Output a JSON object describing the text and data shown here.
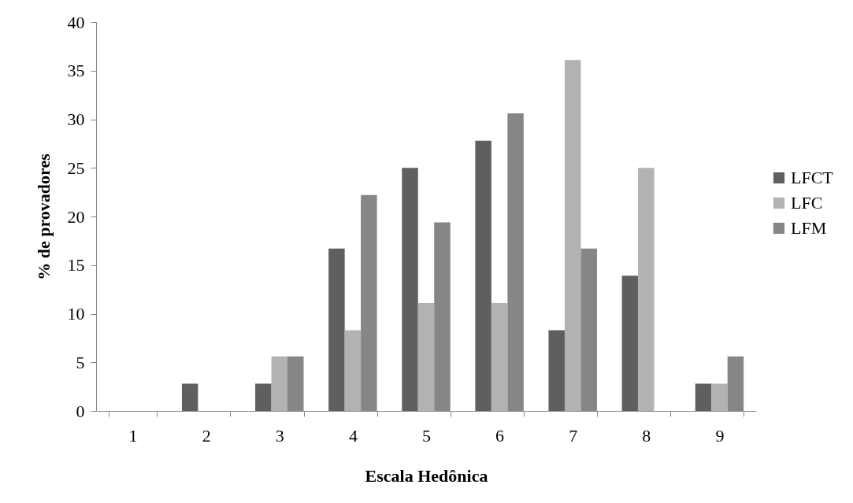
{
  "chart_data": {
    "type": "bar",
    "xlabel": "Escala Hedônica",
    "ylabel": "% de provadores",
    "categories": [
      "1",
      "2",
      "3",
      "4",
      "5",
      "6",
      "7",
      "8",
      "9"
    ],
    "series": [
      {
        "name": "LFCT",
        "color": "#5f5f5f",
        "values": [
          0,
          2.8,
          2.8,
          16.7,
          25,
          27.8,
          8.3,
          13.9,
          2.8
        ]
      },
      {
        "name": "LFC",
        "color": "#b2b2b2",
        "values": [
          0,
          0,
          5.6,
          8.3,
          11.1,
          11.1,
          36.1,
          25,
          2.8
        ]
      },
      {
        "name": "LFM",
        "color": "#868686",
        "values": [
          0,
          0,
          5.6,
          22.2,
          19.4,
          30.6,
          16.7,
          0,
          5.6
        ]
      }
    ],
    "ylim": [
      0,
      40
    ],
    "yticks": [
      0,
      5,
      10,
      15,
      20,
      25,
      30,
      35,
      40
    ],
    "grid": false,
    "legend": "right"
  }
}
